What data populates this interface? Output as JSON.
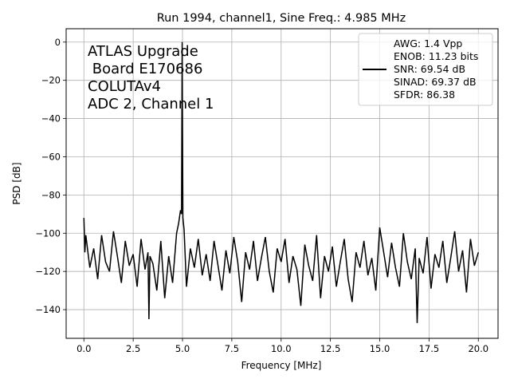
{
  "chart_data": {
    "type": "line",
    "title": "Run 1994, channel1, Sine Freq.: 4.985 MHz",
    "xlabel": "Frequency [MHz]",
    "ylabel": "PSD [dB]",
    "xlim": [
      -0.9,
      21.0
    ],
    "ylim": [
      -155,
      7
    ],
    "xticks": [
      0.0,
      2.5,
      5.0,
      7.5,
      10.0,
      12.5,
      15.0,
      17.5,
      20.0
    ],
    "xtick_labels": [
      "0.0",
      "2.5",
      "5.0",
      "7.5",
      "10.0",
      "12.5",
      "15.0",
      "17.5",
      "20.0"
    ],
    "yticks": [
      0,
      -20,
      -40,
      -60,
      -80,
      -100,
      -120,
      -140
    ],
    "ytick_labels": [
      "0",
      "−20",
      "−40",
      "−60",
      "−80",
      "−100",
      "−120",
      "−140"
    ],
    "grid": true,
    "legend_position": "top-right",
    "line_color": "#000000",
    "annotation_lines": [
      "ATLAS Upgrade",
      " Board E170686",
      "COLUTAv4",
      "ADC 2, Channel 1"
    ],
    "legend_entry_lines": [
      "AWG: 1.4 Vpp",
      "ENOB: 11.23 bits",
      "SNR: 69.54 dB",
      "SINAD: 69.37 dB",
      "SFDR: 86.38"
    ],
    "series": [
      {
        "x": [
          0.0,
          0.05,
          0.1,
          0.3,
          0.5,
          0.7,
          0.9,
          1.1,
          1.3,
          1.5,
          1.7,
          1.9,
          2.1,
          2.3,
          2.5,
          2.7,
          2.9,
          3.1,
          3.25,
          3.3,
          3.35,
          3.5,
          3.7,
          3.9,
          4.1,
          4.3,
          4.5,
          4.7,
          4.8,
          4.9,
          4.95,
          4.985,
          5.02,
          5.08,
          5.2,
          5.4,
          5.6,
          5.8,
          6.0,
          6.2,
          6.4,
          6.6,
          6.8,
          7.0,
          7.2,
          7.4,
          7.6,
          7.8,
          8.0,
          8.2,
          8.4,
          8.6,
          8.8,
          9.0,
          9.2,
          9.4,
          9.6,
          9.8,
          10.0,
          10.2,
          10.4,
          10.6,
          10.8,
          11.0,
          11.2,
          11.4,
          11.6,
          11.8,
          12.0,
          12.2,
          12.4,
          12.6,
          12.8,
          13.0,
          13.2,
          13.4,
          13.6,
          13.8,
          14.0,
          14.2,
          14.4,
          14.6,
          14.8,
          15.0,
          15.2,
          15.4,
          15.6,
          15.8,
          16.0,
          16.2,
          16.4,
          16.6,
          16.8,
          16.9,
          17.0,
          17.2,
          17.4,
          17.6,
          17.8,
          18.0,
          18.2,
          18.4,
          18.6,
          18.8,
          19.0,
          19.2,
          19.4,
          19.6,
          19.8,
          20.0
        ],
        "y": [
          -92,
          -110,
          -101,
          -118,
          -108,
          -124,
          -101,
          -115,
          -120,
          -99,
          -112,
          -126,
          -104,
          -117,
          -111,
          -128,
          -103,
          -119,
          -110,
          -145,
          -112,
          -116,
          -130,
          -104,
          -134,
          -112,
          -126,
          -100,
          -95,
          -88,
          -90,
          0,
          -92,
          -98,
          -128,
          -108,
          -118,
          -103,
          -122,
          -111,
          -125,
          -104,
          -117,
          -130,
          -109,
          -121,
          -102,
          -115,
          -136,
          -110,
          -119,
          -104,
          -125,
          -113,
          -102,
          -120,
          -131,
          -108,
          -115,
          -103,
          -126,
          -112,
          -119,
          -138,
          -106,
          -117,
          -125,
          -101,
          -134,
          -112,
          -120,
          -107,
          -128,
          -115,
          -103,
          -124,
          -136,
          -110,
          -118,
          -104,
          -122,
          -113,
          -130,
          -97,
          -110,
          -123,
          -105,
          -118,
          -128,
          -100,
          -115,
          -124,
          -108,
          -147,
          -113,
          -121,
          -102,
          -129,
          -111,
          -118,
          -104,
          -126,
          -113,
          -99,
          -120,
          -109,
          -131,
          -103,
          -117,
          -110
        ]
      }
    ]
  }
}
